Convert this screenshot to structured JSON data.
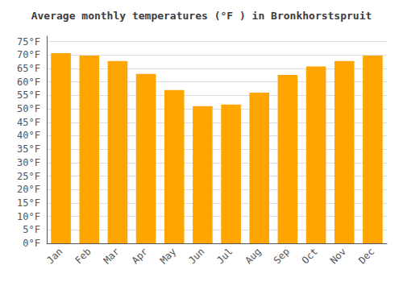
{
  "chart_data": {
    "type": "bar",
    "title": "Average monthly temperatures (°F ) in Bronkhorstspruit",
    "categories": [
      "Jan",
      "Feb",
      "Mar",
      "Apr",
      "May",
      "Jun",
      "Jul",
      "Aug",
      "Sep",
      "Oct",
      "Nov",
      "Dec"
    ],
    "values": [
      70.7,
      69.8,
      67.8,
      63.0,
      57.0,
      51.0,
      51.6,
      56.0,
      62.6,
      65.8,
      67.8,
      69.8
    ],
    "color": "#FFA500",
    "ylim": [
      0,
      77
    ],
    "yticks": [
      {
        "value": 0,
        "label": "0°F"
      },
      {
        "value": 5,
        "label": "5°F"
      },
      {
        "value": 10,
        "label": "10°F"
      },
      {
        "value": 15,
        "label": "15°F"
      },
      {
        "value": 20,
        "label": "20°F"
      },
      {
        "value": 25,
        "label": "25°F"
      },
      {
        "value": 30,
        "label": "30°F"
      },
      {
        "value": 35,
        "label": "35°F"
      },
      {
        "value": 40,
        "label": "40°F"
      },
      {
        "value": 45,
        "label": "45°F"
      },
      {
        "value": 50,
        "label": "50°F"
      },
      {
        "value": 55,
        "label": "55°F"
      },
      {
        "value": 60,
        "label": "60°F"
      },
      {
        "value": 65,
        "label": "65°F"
      },
      {
        "value": 70,
        "label": "70°F"
      },
      {
        "value": 75,
        "label": "75°F"
      }
    ],
    "grid": true
  }
}
